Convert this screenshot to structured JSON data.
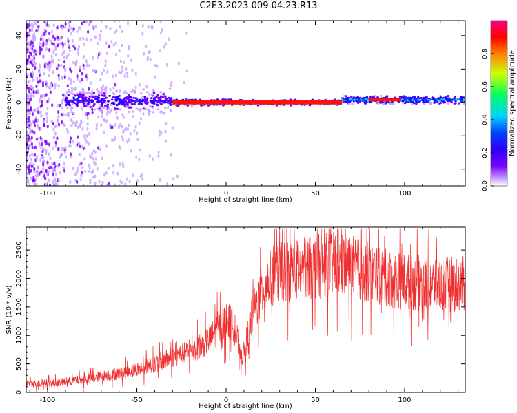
{
  "title": "C2E3.2023.009.04.23.R13",
  "colors": {
    "snr_line": "#f03030",
    "colorbar_stops": [
      "#ffffff",
      "#c9a8ff",
      "#7a00ff",
      "#2a00ff",
      "#0040ff",
      "#00d0ff",
      "#00ff60",
      "#d0ff00",
      "#ff8000",
      "#ff0000",
      "#ff0080"
    ]
  },
  "chart_data": [
    {
      "type": "heatmap",
      "xlabel": "Height of straight line (km)",
      "ylabel": "Frequency (Hz)",
      "xlim": [
        -112,
        134
      ],
      "ylim": [
        -50,
        49
      ],
      "x_ticks": [
        -100,
        -50,
        0,
        50,
        100
      ],
      "y_ticks": [
        -40,
        -20,
        0,
        20,
        40
      ],
      "colorbar": {
        "label": "Normalized spectral amplitude",
        "range": [
          0,
          1
        ],
        "ticks": [
          "0.0",
          "0.2",
          "0.4",
          "0.6",
          "0.8"
        ],
        "tick_values": [
          0,
          0.2,
          0.4,
          0.6,
          0.8
        ]
      },
      "description_of_bands": [
        {
          "x_from": -90,
          "x_to": -30,
          "freq_center": 1,
          "freq_halfwidth": 8,
          "amplitude": 0.4
        },
        {
          "x_from": -30,
          "x_to": 65,
          "freq_center": 0,
          "freq_halfwidth": 2,
          "amplitude": 0.95
        },
        {
          "x_from": 65,
          "x_to": 134,
          "freq_center": 1.5,
          "freq_halfwidth": 3,
          "amplitude": 0.6
        }
      ],
      "grid": false
    },
    {
      "type": "line",
      "xlabel": "Height of straight line (km)",
      "ylabel": "SNR (10 * v/v)",
      "xlim": [
        -112,
        134
      ],
      "ylim": [
        0,
        2900
      ],
      "x_ticks": [
        -100,
        -50,
        0,
        50,
        100
      ],
      "y_ticks": [
        0,
        500,
        1000,
        1500,
        2000,
        2500
      ],
      "series": [
        {
          "x": [
            -112,
            -100,
            -90,
            -80,
            -70,
            -60,
            -50,
            -40,
            -30,
            -20,
            -10,
            -5,
            0,
            5,
            8,
            10,
            15,
            20,
            25,
            30,
            40,
            50,
            60,
            70,
            80,
            90,
            100,
            110,
            120,
            134
          ],
          "y": [
            150,
            160,
            180,
            230,
            280,
            330,
            400,
            500,
            620,
            720,
            900,
            1100,
            1250,
            1200,
            600,
            700,
            1400,
            1750,
            2000,
            2100,
            2150,
            2200,
            2250,
            2200,
            2100,
            2000,
            1950,
            1900,
            1900,
            1900
          ]
        }
      ],
      "grid": false
    }
  ]
}
